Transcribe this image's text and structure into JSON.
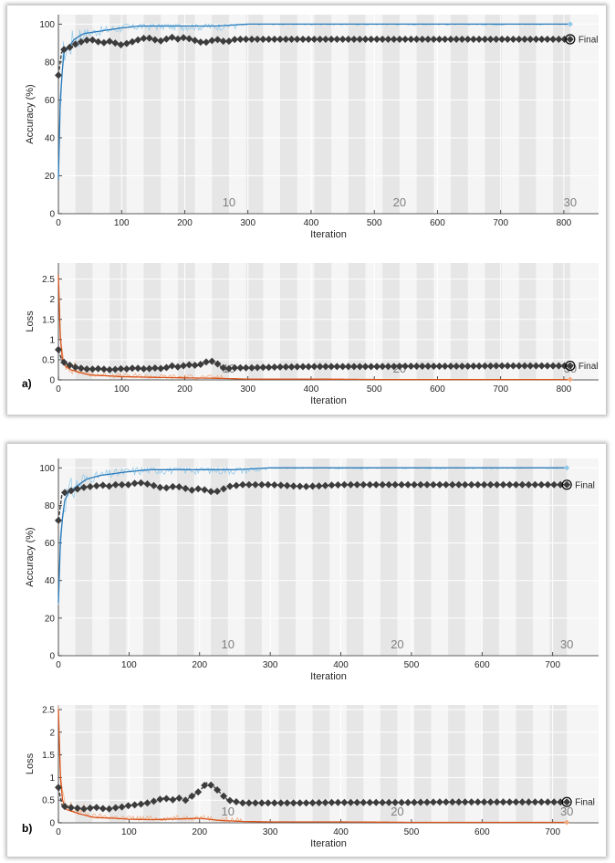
{
  "colors": {
    "train_acc": "#2b7bba",
    "train_acc_raw": "#8ec8ea",
    "val": "#3c3c3c",
    "train_loss": "#d95319",
    "train_loss_raw": "#f0a77c",
    "epoch_band": "#e6e6e6",
    "plot_bg": "#f5f5f5"
  },
  "chart_data": [
    {
      "type": "line",
      "panel": "a",
      "panel_label": "a)",
      "max_iter": 810,
      "epochs": 30,
      "epoch_labels": [
        "10",
        "20",
        "30"
      ],
      "final_label": "Final",
      "accuracy": {
        "ylabel": "Accuracy (%)",
        "xlabel": "Iteration",
        "ylim": [
          0,
          105
        ],
        "yticks": [
          "0",
          "20",
          "40",
          "60",
          "80",
          "100"
        ],
        "xticks": [
          "0",
          "100",
          "200",
          "300",
          "400",
          "500",
          "600",
          "700",
          "800"
        ],
        "series": [
          {
            "key": "train",
            "x": [
              0,
              3,
              8,
              15,
              25,
              40,
              60,
              80,
              100,
              130,
              160,
              200,
              250,
              300,
              400,
              500,
              600,
              700,
              810
            ],
            "y": [
              18,
              60,
              85,
              87,
              92,
              95,
              96,
              97,
              98,
              99,
              99,
              99,
              99,
              100,
              100,
              100,
              100,
              100,
              100
            ]
          },
          {
            "key": "val",
            "x": [
              0,
              5,
              10,
              20,
              30,
              40,
              50,
              60,
              70,
              80,
              90,
              100,
              110,
              120,
              130,
              140,
              150,
              160,
              170,
              180,
              190,
              200,
              210,
              220,
              230,
              240,
              250,
              260,
              270,
              280,
              300,
              350,
              400,
              450,
              500,
              550,
              600,
              650,
              700,
              750,
              810
            ],
            "y": [
              73,
              85,
              87,
              88,
              90,
              91,
              92,
              91,
              90,
              91,
              90,
              89,
              90,
              91,
              92,
              93,
              92,
              91,
              92,
              93,
              92,
              93,
              92,
              91,
              90,
              91,
              92,
              91,
              91,
              92,
              92,
              92,
              92,
              92,
              92,
              92,
              92,
              92,
              92,
              92,
              92
            ]
          }
        ]
      },
      "loss": {
        "ylabel": "Loss",
        "xlabel": "Iteration",
        "ylim": [
          0,
          2.9
        ],
        "yticks": [
          "0",
          "0.5",
          "1",
          "1.5",
          "2",
          "2.5"
        ],
        "xticks": [
          "0",
          "100",
          "200",
          "300",
          "400",
          "500",
          "600",
          "700",
          "800"
        ],
        "series": [
          {
            "key": "train",
            "x": [
              0,
              2,
              5,
              10,
              20,
              30,
              50,
              80,
              100,
              130,
              160,
              200,
              250,
              300,
              400,
              500,
              600,
              700,
              810
            ],
            "y": [
              2.6,
              1.3,
              0.6,
              0.35,
              0.25,
              0.2,
              0.12,
              0.1,
              0.08,
              0.07,
              0.06,
              0.05,
              0.04,
              0.02,
              0.02,
              0.01,
              0.01,
              0.01,
              0.01
            ]
          },
          {
            "key": "val",
            "x": [
              0,
              5,
              10,
              20,
              30,
              40,
              50,
              60,
              70,
              80,
              90,
              100,
              110,
              120,
              130,
              140,
              150,
              160,
              170,
              180,
              190,
              200,
              210,
              220,
              230,
              240,
              250,
              260,
              270,
              280,
              300,
              350,
              400,
              450,
              500,
              550,
              600,
              650,
              700,
              750,
              810
            ],
            "y": [
              0.75,
              0.5,
              0.42,
              0.35,
              0.3,
              0.28,
              0.26,
              0.28,
              0.27,
              0.25,
              0.26,
              0.28,
              0.27,
              0.3,
              0.28,
              0.27,
              0.3,
              0.28,
              0.3,
              0.35,
              0.32,
              0.36,
              0.38,
              0.35,
              0.42,
              0.48,
              0.42,
              0.3,
              0.28,
              0.3,
              0.3,
              0.32,
              0.33,
              0.33,
              0.33,
              0.34,
              0.34,
              0.34,
              0.35,
              0.35,
              0.35
            ]
          }
        ]
      }
    },
    {
      "type": "line",
      "panel": "b",
      "panel_label": "b)",
      "max_iter": 720,
      "epochs": 30,
      "epoch_labels": [
        "10",
        "20",
        "30"
      ],
      "final_label": "Final",
      "accuracy": {
        "ylabel": "Accuracy (%)",
        "xlabel": "Iteration",
        "ylim": [
          0,
          105
        ],
        "yticks": [
          "0",
          "20",
          "40",
          "60",
          "80",
          "100"
        ],
        "xticks": [
          "0",
          "100",
          "200",
          "300",
          "400",
          "500",
          "600",
          "700"
        ],
        "series": [
          {
            "key": "train",
            "x": [
              0,
              3,
              8,
              15,
              25,
              40,
              60,
              80,
              100,
              130,
              160,
              200,
              250,
              300,
              400,
              500,
              600,
              720
            ],
            "y": [
              28,
              62,
              82,
              87,
              90,
              94,
              96,
              97,
              98,
              99,
              99,
              99,
              99,
              100,
              100,
              100,
              100,
              100
            ]
          },
          {
            "key": "val",
            "x": [
              0,
              5,
              10,
              20,
              30,
              40,
              50,
              60,
              70,
              80,
              90,
              100,
              110,
              120,
              130,
              140,
              150,
              160,
              170,
              180,
              190,
              200,
              210,
              220,
              230,
              240,
              260,
              300,
              350,
              400,
              450,
              500,
              550,
              600,
              650,
              720
            ],
            "y": [
              72,
              86,
              87,
              88,
              89,
              90,
              90,
              91,
              90,
              91,
              91,
              91,
              92,
              92,
              91,
              90,
              89,
              90,
              90,
              89,
              88,
              89,
              88,
              87,
              88,
              90,
              91,
              91,
              90,
              91,
              91,
              91,
              91,
              91,
              91,
              91
            ]
          }
        ]
      },
      "loss": {
        "ylabel": "Loss",
        "xlabel": "Iteration",
        "ylim": [
          0,
          2.6
        ],
        "yticks": [
          "0",
          "0.5",
          "1",
          "1.5",
          "2",
          "2.5"
        ],
        "xticks": [
          "0",
          "100",
          "200",
          "300",
          "400",
          "500",
          "600",
          "700"
        ],
        "series": [
          {
            "key": "train",
            "x": [
              0,
              2,
              5,
              10,
              20,
              30,
              50,
              80,
              100,
              130,
              160,
              200,
              230,
              260,
              300,
              400,
              500,
              600,
              720
            ],
            "y": [
              2.5,
              1.2,
              0.55,
              0.3,
              0.25,
              0.2,
              0.12,
              0.1,
              0.08,
              0.07,
              0.08,
              0.1,
              0.05,
              0.03,
              0.02,
              0.02,
              0.01,
              0.01,
              0.01
            ]
          },
          {
            "key": "val",
            "x": [
              0,
              5,
              10,
              20,
              30,
              40,
              50,
              60,
              70,
              80,
              90,
              100,
              110,
              120,
              130,
              140,
              150,
              160,
              170,
              180,
              190,
              200,
              210,
              220,
              230,
              240,
              260,
              300,
              350,
              400,
              450,
              500,
              550,
              600,
              650,
              720
            ],
            "y": [
              0.78,
              0.4,
              0.35,
              0.33,
              0.32,
              0.3,
              0.35,
              0.32,
              0.3,
              0.33,
              0.35,
              0.38,
              0.4,
              0.42,
              0.45,
              0.5,
              0.55,
              0.5,
              0.55,
              0.5,
              0.6,
              0.7,
              0.88,
              0.8,
              0.65,
              0.5,
              0.44,
              0.44,
              0.44,
              0.45,
              0.45,
              0.45,
              0.46,
              0.46,
              0.46,
              0.46
            ]
          }
        ]
      }
    }
  ]
}
